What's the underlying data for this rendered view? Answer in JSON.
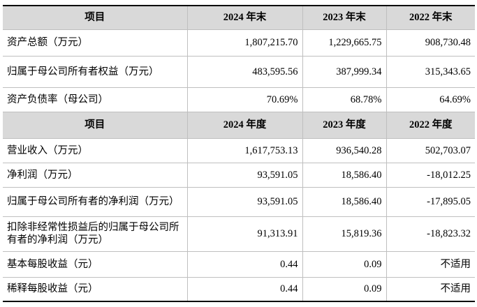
{
  "table": {
    "sections": [
      {
        "header": [
          "项目",
          "2024 年末",
          "2023 年末",
          "2022 年末"
        ],
        "rows": [
          [
            "资产总额（万元）",
            "1,807,215.70",
            "1,229,665.75",
            "908,730.48"
          ],
          [
            "归属于母公司所有者权益（万元）",
            "483,595.56",
            "387,999.34",
            "315,343.65"
          ],
          [
            "资产负债率（母公司）",
            "70.69%",
            "68.78%",
            "64.69%"
          ]
        ]
      },
      {
        "header": [
          "项目",
          "2024 年度",
          "2023 年度",
          "2022 年度"
        ],
        "rows": [
          [
            "营业收入（万元）",
            "1,617,753.13",
            "936,540.28",
            "502,703.07"
          ],
          [
            "净利润（万元）",
            "93,591.05",
            "18,586.40",
            "-18,012.25"
          ],
          [
            "归属于母公司所有者的净利润（万元）",
            "93,591.05",
            "18,586.40",
            "-17,895.05"
          ],
          [
            "扣除非经常性损益后的归属于母公司所有者的净利润（万元）",
            "91,313.91",
            "15,819.36",
            "-18,823.32"
          ],
          [
            "基本每股收益（元）",
            "0.44",
            "0.09",
            "不适用"
          ],
          [
            "稀释每股收益（元）",
            "0.44",
            "0.09",
            "不适用"
          ]
        ]
      }
    ]
  }
}
